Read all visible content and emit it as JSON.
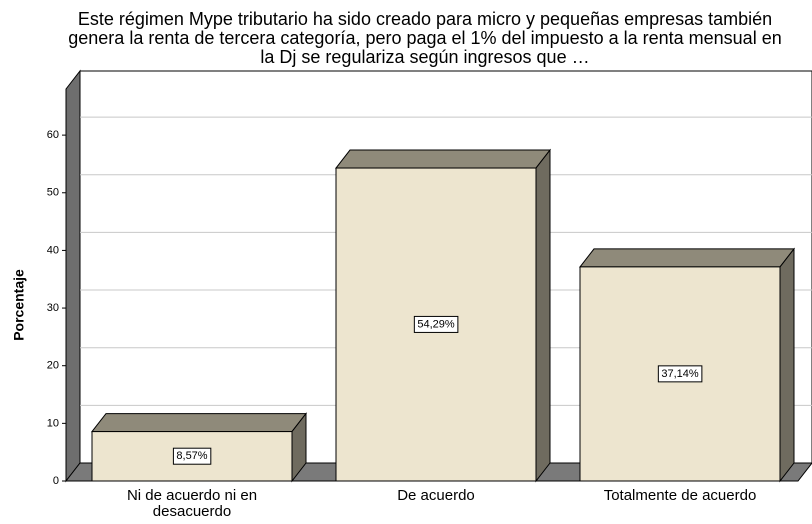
{
  "chart_data": {
    "type": "bar3d",
    "title": "Este régimen Mype tributario ha sido creado para micro y pequeñas empresas también genera la renta de tercera categoría, pero paga el 1% del impuesto a la renta mensual en la Dj se regulariza según ingresos que …",
    "y_label": "Porcentaje",
    "categories": [
      "Ni de acuerdo ni en desacuerdo",
      "De acuerdo",
      "Totalmente de acuerdo"
    ],
    "values": [
      8.57,
      54.29,
      37.14
    ],
    "value_labels": [
      "8,57%",
      "54,29%",
      "37,14%"
    ],
    "color": "#ede5cf",
    "ylim": [
      0,
      68
    ],
    "yticks": [
      0,
      10,
      20,
      30,
      40,
      50,
      60
    ],
    "grid": true
  }
}
